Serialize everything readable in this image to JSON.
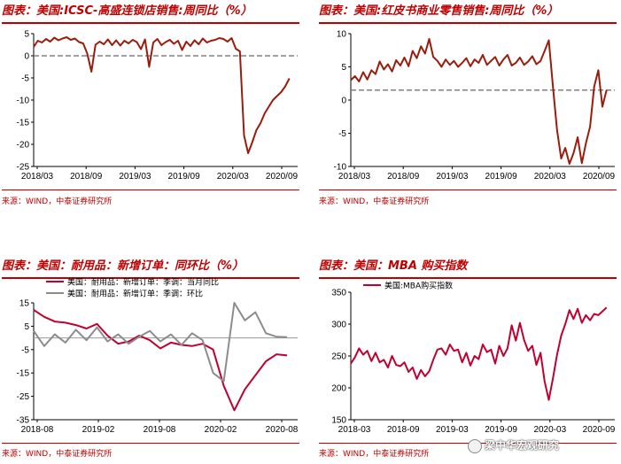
{
  "panels": [
    {
      "title": "图表：美国:ICSC-高盛连锁店销售:周同比（%）",
      "source": "来源：WIND，中泰证券研究所",
      "chart_data": {
        "type": "line",
        "xlabels": [
          "2018/03",
          "2018/09",
          "2019/03",
          "2019/09",
          "2020/03",
          "2020/09"
        ],
        "xlim": [
          0,
          32
        ],
        "yticks": [
          5,
          0,
          -5,
          -10,
          -15,
          -20,
          -25
        ],
        "ylim": [
          -25,
          5
        ],
        "reference_line": 0,
        "series": [
          {
            "color": "#9b1c0c",
            "x": [
              0,
              0.5,
              1,
              1.5,
              2,
              2.5,
              3,
              3.5,
              4,
              4.5,
              5,
              5.5,
              6,
              6.5,
              7,
              7.5,
              8,
              8.5,
              9,
              9.5,
              10,
              10.5,
              11,
              11.5,
              12,
              12.5,
              13,
              13.5,
              14,
              14.5,
              15,
              15.5,
              16,
              16.5,
              17,
              17.5,
              18,
              18.5,
              19,
              19.5,
              20,
              20.5,
              21,
              21.5,
              22,
              22.5,
              23,
              23.5,
              24,
              24.5,
              25,
              25.5,
              26,
              26.5,
              27,
              27.5,
              28,
              28.5,
              29,
              29.5,
              30,
              30.5,
              31
            ],
            "y": [
              2.0,
              3.4,
              3.0,
              3.8,
              3.2,
              4.1,
              3.5,
              3.9,
              4.2,
              3.6,
              3.9,
              3.1,
              2.8,
              0.5,
              -3.6,
              2.5,
              3.2,
              2.6,
              3.7,
              2.4,
              3.5,
              2.3,
              3.4,
              2.8,
              3.6,
              3.1,
              1.5,
              3.7,
              -2.5,
              3.0,
              3.8,
              2.4,
              3.1,
              3.6,
              2.7,
              3.4,
              1.3,
              3.2,
              2.2,
              3.5,
              2.6,
              3.9,
              3.0,
              3.4,
              3.6,
              4.0,
              3.8,
              3.2,
              4.0,
              1.6,
              1.0,
              -18.0,
              -22.0,
              -19.5,
              -16.8,
              -15.2,
              -13.0,
              -11.5,
              -10.0,
              -9.1,
              -8.2,
              -6.9,
              -5.1
            ]
          }
        ]
      }
    },
    {
      "title": "图表：美国:红皮书商业零售销售:周同比（%）",
      "source": "来源：WIND，中泰证券研究所",
      "chart_data": {
        "type": "line",
        "xlabels": [
          "2018/03",
          "2018/09",
          "2019/03",
          "2019/09",
          "2020/03",
          "2020/09"
        ],
        "xlim": [
          0,
          32
        ],
        "yticks": [
          10,
          5,
          0,
          -5,
          -10
        ],
        "ylim": [
          -10,
          10
        ],
        "reference_line": 1.5,
        "series": [
          {
            "color": "#9b1c0c",
            "x": [
              0,
              0.5,
              1,
              1.5,
              2,
              2.5,
              3,
              3.5,
              4,
              4.5,
              5,
              5.5,
              6,
              6.5,
              7,
              7.5,
              8,
              8.5,
              9,
              9.5,
              10,
              10.5,
              11,
              11.5,
              12,
              12.5,
              13,
              13.5,
              14,
              14.5,
              15,
              15.5,
              16,
              16.5,
              17,
              17.5,
              18,
              18.5,
              19,
              19.5,
              20,
              20.5,
              21,
              21.5,
              22,
              22.5,
              23,
              23.5,
              24,
              24.5,
              25,
              25.5,
              26,
              26.5,
              27,
              27.5,
              28,
              28.5,
              29,
              29.5,
              30,
              30.5,
              31
            ],
            "y": [
              3.0,
              3.6,
              2.8,
              4.2,
              3.1,
              4.5,
              3.9,
              5.8,
              4.6,
              5.4,
              4.3,
              6.0,
              5.2,
              6.4,
              5.1,
              7.4,
              6.3,
              8.1,
              7.0,
              9.2,
              6.5,
              5.9,
              5.0,
              6.1,
              5.3,
              5.9,
              5.0,
              5.6,
              6.3,
              5.1,
              6.1,
              5.6,
              6.8,
              5.3,
              5.9,
              6.5,
              5.2,
              6.1,
              6.8,
              5.2,
              5.6,
              6.4,
              5.3,
              5.8,
              6.6,
              5.4,
              5.9,
              7.4,
              9.0,
              2.0,
              -4.5,
              -8.8,
              -7.2,
              -9.6,
              -8.0,
              -5.6,
              -9.5,
              -6.5,
              -4.0,
              2.0,
              4.5,
              -1.0,
              1.5
            ]
          }
        ]
      }
    },
    {
      "title": "图表：美国：耐用品：新增订单：同环比（%）",
      "source": "来源：WIND，中泰证券研究所",
      "chart_data": {
        "type": "line",
        "xlabels": [
          "2018-08",
          "2019-02",
          "2019-08",
          "2020-02",
          "2020-08"
        ],
        "xlim": [
          0,
          25
        ],
        "yticks": [
          15,
          5,
          -5,
          -15,
          -25,
          -35
        ],
        "ylim": [
          -35,
          15
        ],
        "reference_line": 0,
        "legend_position": "top-left",
        "series": [
          {
            "name": "美国：耐用品：新增订单：季调：当月同比",
            "color": "#c00030",
            "x": [
              0,
              1,
              2,
              3,
              4,
              5,
              6,
              7,
              8,
              9,
              10,
              11,
              12,
              13,
              14,
              15,
              16,
              17,
              18,
              19,
              20,
              21,
              22,
              23,
              24
            ],
            "y": [
              12.0,
              9.0,
              7.0,
              6.5,
              5.5,
              4.0,
              6.0,
              1.0,
              -2.5,
              -1.5,
              1.0,
              -1.0,
              -4.5,
              -2.0,
              -3.0,
              -3.5,
              -2.5,
              -5.0,
              -20.5,
              -31.0,
              -22.0,
              -16.0,
              -10.0,
              -7.0,
              -7.5
            ]
          },
          {
            "name": "美国：耐用品：新增订单：季调：环比",
            "color": "#8c8c8c",
            "x": [
              0,
              1,
              2,
              3,
              4,
              5,
              6,
              7,
              8,
              9,
              10,
              11,
              12,
              13,
              14,
              15,
              16,
              17,
              18,
              19,
              20,
              21,
              22,
              23,
              24
            ],
            "y": [
              3.0,
              -3.5,
              1.5,
              -2.0,
              3.5,
              -1.0,
              4.5,
              -1.5,
              1.5,
              -2.5,
              0.5,
              3.0,
              -1.5,
              1.5,
              -3.0,
              2.0,
              -1.0,
              -15.0,
              -18.5,
              15.0,
              7.5,
              11.0,
              2.0,
              0.5,
              0.3
            ]
          }
        ]
      }
    },
    {
      "title": "图表：美国：MBA 购买指数",
      "source": "来源：WIND，中泰证券研究所",
      "chart_data": {
        "type": "line",
        "xlabels": [
          "2018-03",
          "2018-09",
          "2019-03",
          "2019-09",
          "2020-03",
          "2020-09"
        ],
        "xlim": [
          0,
          32
        ],
        "yticks": [
          350,
          300,
          250,
          200,
          150
        ],
        "ylim": [
          150,
          350
        ],
        "legend_position": "top-left",
        "series": [
          {
            "name": "美国:MBA购买指数",
            "color": "#c00030",
            "x": [
              0,
              0.5,
              1,
              1.5,
              2,
              2.5,
              3,
              3.5,
              4,
              4.5,
              5,
              5.5,
              6,
              6.5,
              7,
              7.5,
              8,
              8.5,
              9,
              9.5,
              10,
              10.5,
              11,
              11.5,
              12,
              12.5,
              13,
              13.5,
              14,
              14.5,
              15,
              15.5,
              16,
              16.5,
              17,
              17.5,
              18,
              18.5,
              19,
              19.5,
              20,
              20.5,
              21,
              21.5,
              22,
              22.5,
              23,
              23.5,
              24,
              24.5,
              25,
              25.5,
              26,
              26.5,
              27,
              27.5,
              28,
              28.5,
              29,
              29.5,
              30,
              30.5,
              31
            ],
            "y": [
              238,
              248,
              262,
              252,
              258,
              242,
              255,
              240,
              244,
              232,
              250,
              236,
              234,
              240,
              225,
              232,
              214,
              228,
              218,
              226,
              244,
              260,
              262,
              252,
              268,
              258,
              260,
              240,
              255,
              235,
              250,
              245,
              268,
              256,
              260,
              238,
              266,
              250,
              262,
              298,
              274,
              302,
              275,
              258,
              266,
              236,
              255,
              210,
              181,
              215,
              252,
              282,
              300,
              322,
              308,
              324,
              302,
              314,
              306,
              316,
              314,
              320,
              326
            ]
          }
        ]
      }
    }
  ],
  "watermark": "梁中华宏观研究"
}
